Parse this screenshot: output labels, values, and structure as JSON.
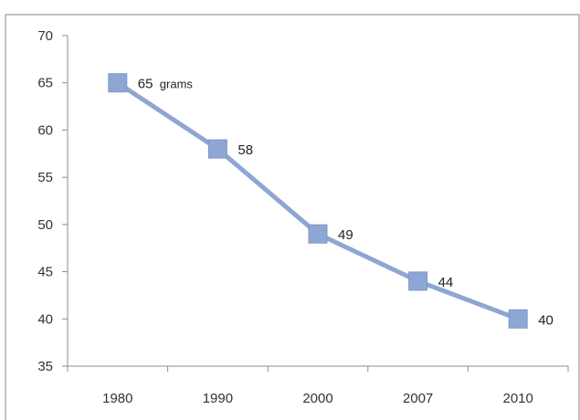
{
  "chart_data": {
    "type": "line",
    "categories": [
      "1980",
      "1990",
      "2000",
      "2007",
      "2010"
    ],
    "series": [
      {
        "values": [
          65,
          58,
          49,
          44,
          40
        ],
        "color": "#8ea6d3"
      }
    ],
    "data_labels": [
      "65",
      "58",
      "49",
      "44",
      "40"
    ],
    "first_label_unit": "grams",
    "y_ticks": [
      "35",
      "40",
      "45",
      "50",
      "55",
      "60",
      "65",
      "70"
    ],
    "ylim": [
      35,
      70
    ],
    "ystep": 5,
    "grid": false,
    "legend": "none",
    "marker": "square"
  }
}
